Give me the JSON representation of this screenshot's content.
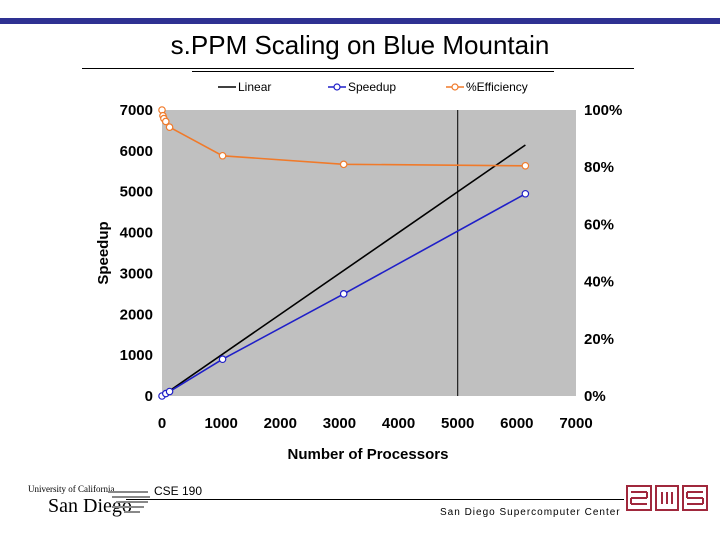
{
  "slide": {
    "title": "s.PPM Scaling on Blue Mountain",
    "course": "CSE 190",
    "center_name": "San Diego Supercomputer Center",
    "ucsd_logo_small": "University of California",
    "ucsd_logo_big": "San Diego"
  },
  "colors": {
    "top_bar": "#2e3192",
    "linear": "#000000",
    "speedup": "#1f1fc8",
    "efficiency": "#f07a2a",
    "plot_bg": "#c0c0c0",
    "sdsc_red": "#a0283c"
  },
  "chart_data": {
    "type": "line",
    "title": "",
    "xlabel": "Number of Processors",
    "ylabel": "Speedup",
    "xlim": [
      0,
      7000
    ],
    "ylim": [
      0,
      7000
    ],
    "y2lim": [
      0,
      100
    ],
    "x_ticks": [
      "0",
      "1000",
      "2000",
      "3000",
      "4000",
      "5000",
      "6000",
      "7000"
    ],
    "y_ticks": [
      "0",
      "1000",
      "2000",
      "3000",
      "4000",
      "5000",
      "6000",
      "7000"
    ],
    "y2_ticks": [
      "0%",
      "20%",
      "40%",
      "60%",
      "80%",
      "100%"
    ],
    "grid": false,
    "legend_position": "top",
    "reference_x": 5000,
    "series": [
      {
        "name": "Linear",
        "axis": "left",
        "marker": false,
        "x": [
          0,
          6144
        ],
        "y": [
          0,
          6144
        ]
      },
      {
        "name": "Speedup",
        "axis": "left",
        "marker": true,
        "x": [
          0,
          64,
          128,
          1024,
          3072,
          6144
        ],
        "y": [
          0,
          60,
          110,
          900,
          2500,
          4950
        ]
      },
      {
        "name": "%Efficiency",
        "axis": "right",
        "marker": true,
        "x": [
          0,
          16,
          32,
          64,
          128,
          1024,
          3072,
          6144
        ],
        "y": [
          100,
          98,
          97,
          96,
          94,
          84,
          81,
          80.5
        ]
      }
    ]
  }
}
